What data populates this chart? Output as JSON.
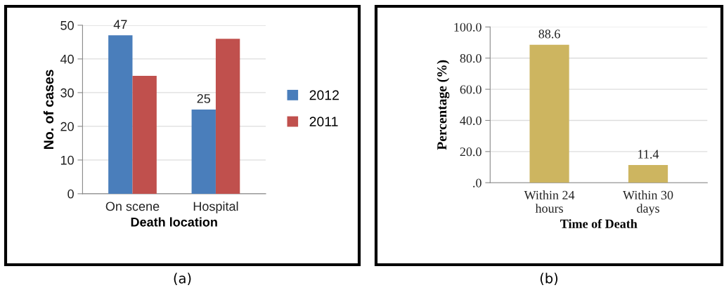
{
  "chart_data": [
    {
      "type": "bar",
      "categories": [
        "On scene",
        "Hospital"
      ],
      "xlabel": "Death location",
      "ylabel": "No. of cases",
      "series": [
        {
          "name": "2012",
          "color": "#4a7ebb",
          "values": [
            47,
            25
          ],
          "value_labels": [
            "47",
            "25"
          ]
        },
        {
          "name": "2011",
          "color": "#c0504d",
          "values": [
            35,
            46
          ]
        }
      ],
      "ylim": [
        0,
        50
      ],
      "yticks": [
        0,
        10,
        20,
        30,
        40,
        50
      ],
      "grid": "y",
      "legend": "right",
      "annotations": [
        "(a)"
      ]
    },
    {
      "type": "bar",
      "categories": [
        "Within 24\nhours",
        "Within 30\ndays"
      ],
      "xlabel": "Time of Death",
      "ylabel": "Percentage (%)",
      "series": [
        {
          "color": "#cdb560",
          "values": [
            88.6,
            11.4
          ]
        }
      ],
      "data_labels": true,
      "ylim": [
        0,
        100
      ],
      "yticks": [
        {
          "value": 0,
          "label": ".0"
        },
        {
          "value": 20,
          "label": "20.0"
        },
        {
          "value": 40,
          "label": "40.0"
        },
        {
          "value": 60,
          "label": "60.0"
        },
        {
          "value": 80,
          "label": "80.0"
        },
        {
          "value": 100,
          "label": "100.0"
        }
      ],
      "grid": "y",
      "annotations": [
        "(b)"
      ]
    }
  ]
}
